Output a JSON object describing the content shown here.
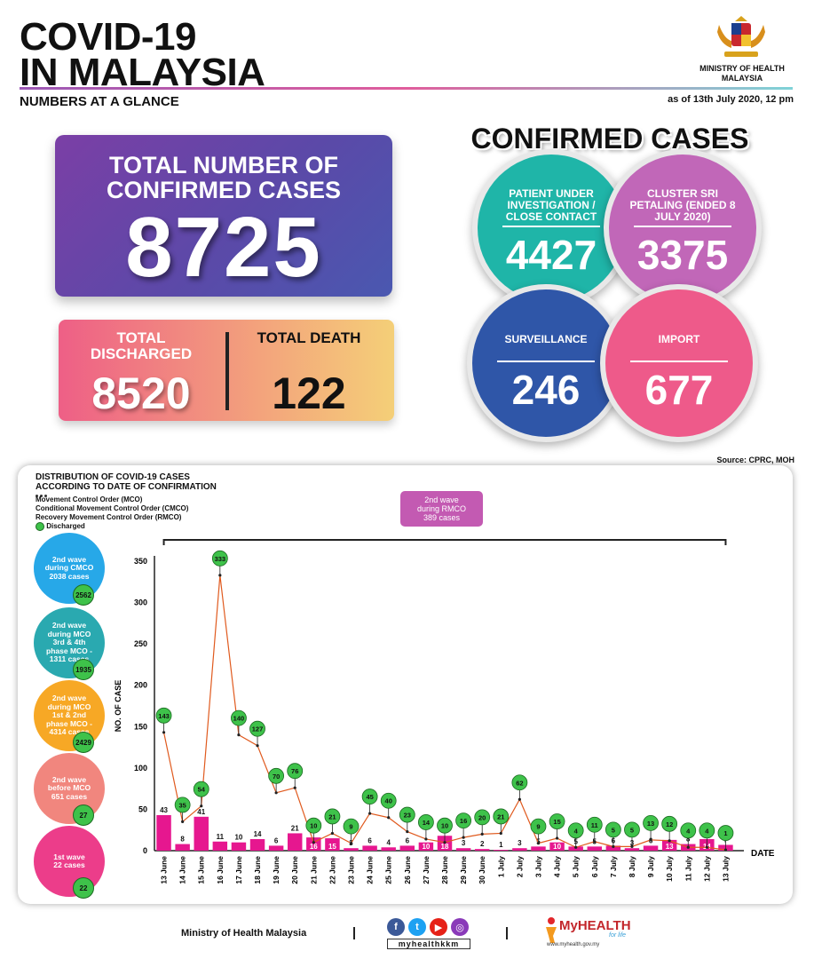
{
  "header": {
    "title_line1": "COVID-19",
    "title_line2": "IN MALAYSIA",
    "ministry": "MINISTRY OF HEALTH MALAYSIA",
    "subtitle": "NUMBERS AT A GLANCE",
    "as_of": "as of 13th July 2020, 12 pm"
  },
  "totals": {
    "confirmed_label": "TOTAL NUMBER OF CONFIRMED CASES",
    "confirmed_value": "8725",
    "discharged_label": "TOTAL DISCHARGED",
    "discharged_value": "8520",
    "death_label": "TOTAL DEATH",
    "death_value": "122"
  },
  "confirmed_breakdown": {
    "title": "CONFIRMED CASES",
    "items": [
      {
        "label": "PATIENT UNDER INVESTIGATION / CLOSE CONTACT",
        "value": "4427",
        "color": "#1fb5a8"
      },
      {
        "label": "CLUSTER SRI PETALING (ENDED 8 JULY 2020)",
        "value": "3375",
        "color": "#c167b8"
      },
      {
        "label": "SURVEILLANCE",
        "value": "246",
        "color": "#2f56a8"
      },
      {
        "label": "IMPORT",
        "value": "677",
        "color": "#ee5a8a"
      }
    ]
  },
  "source": "Source: CPRC, MOH",
  "distribution": {
    "title_line1": "DISTRIBUTION OF COVID-19 CASES",
    "title_line2": "ACCORDING TO DATE OF CONFIRMATION",
    "legend": [
      "Movement Control Order (MCO)",
      "Conditional Movement Control Order (CMCO)",
      "Recovery Movement Control Order (RMCO)",
      "Discharged"
    ],
    "rmco_box": [
      "2nd wave",
      "during RMCO",
      "389 cases"
    ],
    "waves": [
      {
        "lines": [
          "2nd wave",
          "during CMCO",
          "2038 cases"
        ],
        "discharged": "2562",
        "color": "#27a8e8"
      },
      {
        "lines": [
          "2nd wave",
          "during MCO",
          "3rd & 4th",
          "phase MCO -",
          "1311 cases"
        ],
        "discharged": "1935",
        "color": "#2aa9b0"
      },
      {
        "lines": [
          "2nd wave",
          "during MCO",
          "1st & 2nd",
          "phase MCO -",
          "4314 cases"
        ],
        "discharged": "2429",
        "color": "#f7a825"
      },
      {
        "lines": [
          "2nd wave",
          "before MCO",
          "651 cases"
        ],
        "discharged": "27",
        "color": "#f1867e"
      },
      {
        "lines": [
          "1st wave",
          "22 cases"
        ],
        "discharged": "22",
        "color": "#ec3d8a"
      }
    ]
  },
  "chart_data": {
    "type": "bar",
    "ylabel": "NO. OF CASE",
    "xlabel": "DATE",
    "ylim": [
      0,
      350
    ],
    "yticks": [
      0,
      50,
      100,
      150,
      200,
      250,
      300,
      350
    ],
    "categories": [
      "13 June",
      "14 June",
      "15 June",
      "16 June",
      "17 June",
      "18 June",
      "19 June",
      "20 June",
      "21 June",
      "22 June",
      "23 June",
      "24 June",
      "25 June",
      "26 June",
      "27 June",
      "28 June",
      "29 June",
      "30 June",
      "1 July",
      "2 July",
      "3 July",
      "4 July",
      "5 July",
      "6 July",
      "7 July",
      "8 July",
      "9 July",
      "10 July",
      "11 July",
      "12 July",
      "13 July"
    ],
    "series": [
      {
        "values": [
          43,
          8,
          41,
          11,
          10,
          14,
          6,
          21,
          16,
          15,
          3,
          6,
          4,
          6,
          10,
          18,
          3,
          2,
          1,
          3,
          5,
          10,
          5,
          5,
          6,
          3,
          6,
          13,
          8,
          14,
          7
        ],
        "color": "#e6178f"
      },
      {
        "name": "Discharged",
        "values": [
          143,
          35,
          54,
          333,
          140,
          127,
          70,
          76,
          10,
          21,
          9,
          45,
          40,
          23,
          14,
          10,
          16,
          20,
          21,
          62,
          9,
          15,
          4,
          11,
          5,
          5,
          13,
          12,
          4,
          4,
          1
        ],
        "color": "#e05a1e"
      }
    ]
  },
  "footer": {
    "ministry": "Ministry of Health Malaysia",
    "handle": "myhealthkkm",
    "brand": "MyHEALTH",
    "brand_tag": "for life",
    "url": "www.myhealth.gov.my"
  }
}
